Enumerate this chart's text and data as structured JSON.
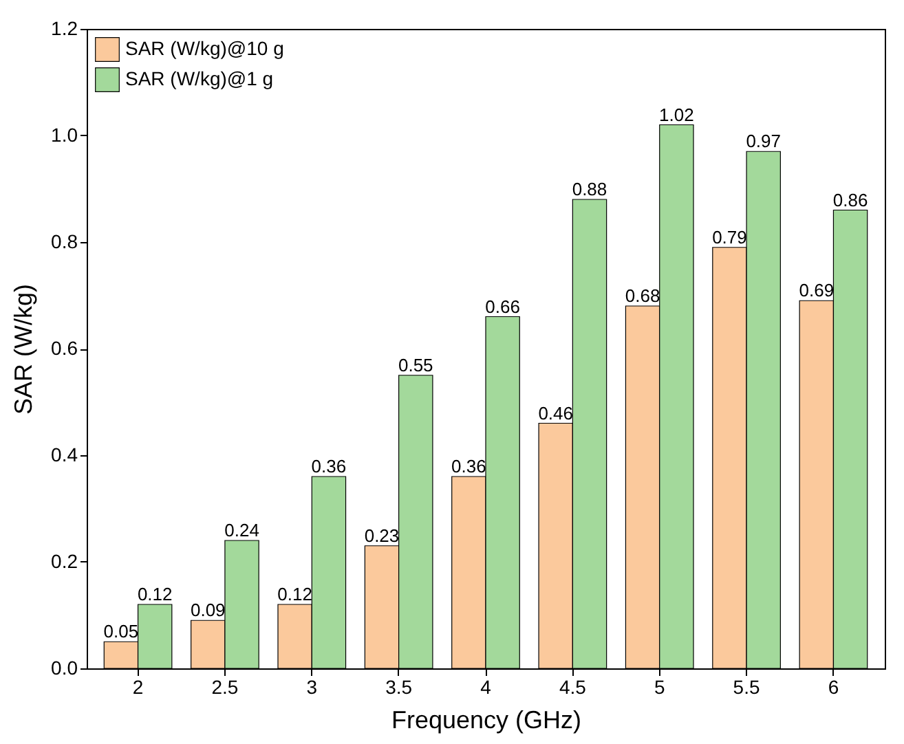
{
  "chart_data": {
    "type": "bar",
    "xlabel": "Frequency (GHz)",
    "ylabel": "SAR (W/kg)",
    "categories": [
      "2",
      "2.5",
      "3",
      "3.5",
      "4",
      "4.5",
      "5",
      "5.5",
      "6"
    ],
    "series": [
      {
        "name": "SAR (W/kg)@10 g",
        "color": "#fbc99c",
        "values": [
          0.05,
          0.09,
          0.12,
          0.23,
          0.36,
          0.46,
          0.68,
          0.79,
          0.69
        ]
      },
      {
        "name": "SAR (W/kg)@1 g",
        "color": "#a3d99b",
        "values": [
          0.12,
          0.24,
          0.36,
          0.55,
          0.66,
          0.88,
          1.02,
          0.97,
          0.86
        ]
      }
    ],
    "ylim": [
      0,
      1.2
    ],
    "yticks": [
      {
        "value": 0,
        "label": "0.0"
      },
      {
        "value": 0.2,
        "label": "0.2"
      },
      {
        "value": 0.4,
        "label": "0.4"
      },
      {
        "value": 0.6,
        "label": "0.6"
      },
      {
        "value": 0.8,
        "label": "0.8"
      },
      {
        "value": 1.0,
        "label": "1.0"
      },
      {
        "value": 1.2,
        "label": "1.2"
      }
    ],
    "data_labels": true,
    "grid": false,
    "legend": "top left"
  }
}
